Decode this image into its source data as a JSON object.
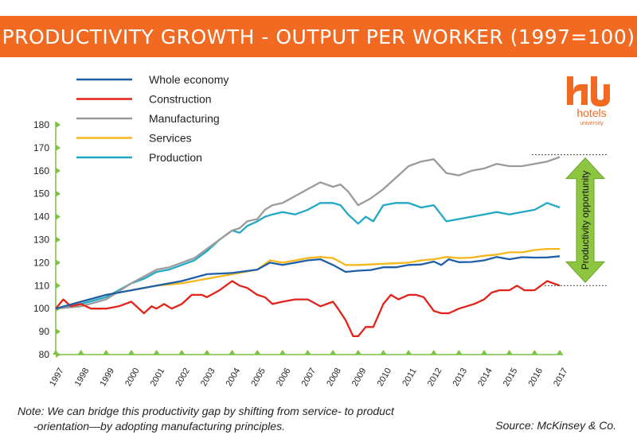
{
  "title": "PRODUCTIVITY GROWTH - OUTPUT PER WORKER (1997=100)",
  "note_line1": "Note: We can bridge this productivity gap by shifting from service- to product",
  "note_line2": "-orientation—by adopting manufacturing principles.",
  "source": "Source: McKinsey & Co.",
  "logo": {
    "text": "hotels",
    "subtext": "university"
  },
  "chart_data": {
    "type": "line",
    "x_ticks": [
      "1997",
      "1998",
      "1999",
      "2000",
      "2001",
      "2002",
      "2003",
      "2004",
      "2005",
      "2006",
      "2007",
      "2008",
      "2009",
      "2010",
      "2011",
      "2012",
      "2013",
      "2014",
      "2015",
      "2016",
      "2017"
    ],
    "y_ticks": [
      80,
      90,
      100,
      110,
      120,
      130,
      140,
      150,
      160,
      170,
      180
    ],
    "xlim": [
      1997,
      2017
    ],
    "ylim": [
      80,
      180
    ],
    "legend_position": "top-left",
    "annotation": "Productivity opportunity",
    "series": [
      {
        "name": "Whole economy",
        "color": "#1f5fa8",
        "x": [
          1997,
          1998,
          1999,
          2000,
          2001,
          2002,
          2003,
          2004,
          2005,
          2005.5,
          2006,
          2007,
          2007.5,
          2008,
          2008.5,
          2009,
          2009.5,
          2010,
          2010.5,
          2011,
          2011.5,
          2012,
          2012.3,
          2012.6,
          2013,
          2013.5,
          2014,
          2014.5,
          2015,
          2015.5,
          2016,
          2016.5,
          2017
        ],
        "y": [
          100,
          103,
          106,
          108,
          110,
          112,
          115,
          115.5,
          117,
          120,
          119,
          121,
          121.5,
          119,
          116,
          116.5,
          116.8,
          118,
          118,
          119,
          119.2,
          120.5,
          119,
          121.5,
          120.2,
          120.3,
          121,
          122.5,
          121.5,
          122.4,
          122.2,
          122.3,
          122.8
        ]
      },
      {
        "name": "Construction",
        "color": "#e2231a",
        "x": [
          1997,
          1997.3,
          1997.6,
          1998,
          1998.4,
          1998.8,
          1999,
          1999.5,
          2000,
          2000.5,
          2000.8,
          2001,
          2001.3,
          2001.6,
          2002,
          2002.4,
          2002.8,
          2003,
          2003.5,
          2004,
          2004.3,
          2004.6,
          2005,
          2005.3,
          2005.6,
          2006,
          2006.5,
          2007,
          2007.5,
          2008,
          2008.2,
          2008.5,
          2008.8,
          2009,
          2009.3,
          2009.6,
          2010,
          2010.3,
          2010.6,
          2011,
          2011.3,
          2011.6,
          2012,
          2012.3,
          2012.6,
          2013,
          2013.3,
          2013.6,
          2014,
          2014.3,
          2014.6,
          2015,
          2015.3,
          2015.6,
          2016,
          2016.5,
          2017
        ],
        "y": [
          100,
          104,
          101,
          102,
          100,
          100,
          100,
          101,
          103,
          98,
          101,
          100,
          102,
          100,
          102,
          106,
          106,
          105,
          108,
          112,
          110,
          109,
          106,
          105,
          102,
          103,
          104,
          104,
          101,
          103,
          100,
          95,
          88,
          88,
          92,
          92,
          102,
          106,
          104,
          106,
          106,
          105,
          99,
          98,
          98,
          100,
          101,
          102,
          104,
          107,
          108,
          108,
          110,
          108,
          108,
          112,
          110
        ]
      },
      {
        "name": "Manufacturing",
        "color": "#9b9b9b",
        "x": [
          1997,
          1998,
          1999,
          2000,
          2000.5,
          2001,
          2001.5,
          2002,
          2002.5,
          2003,
          2003.5,
          2004,
          2004.3,
          2004.6,
          2005,
          2005.3,
          2005.6,
          2006,
          2006.5,
          2007,
          2007.5,
          2008,
          2008.3,
          2008.6,
          2009,
          2009.5,
          2010,
          2010.5,
          2011,
          2011.5,
          2012,
          2012.5,
          2013,
          2013.5,
          2014,
          2014.5,
          2015,
          2015.5,
          2016,
          2016.5,
          2017
        ],
        "y": [
          100,
          101,
          104,
          111,
          114,
          117,
          118,
          120,
          122,
          126,
          130,
          134,
          135,
          138,
          139,
          143,
          145,
          146,
          149,
          152,
          155,
          153,
          154,
          151,
          145,
          148,
          152,
          157,
          162,
          164,
          165,
          159,
          158,
          160,
          161,
          163,
          162,
          162,
          163,
          164,
          166
        ]
      },
      {
        "name": "Services",
        "color": "#f5b81c",
        "x": [
          1997,
          1998,
          1999,
          2000,
          2001,
          2002,
          2003,
          2004,
          2005,
          2005.5,
          2006,
          2007,
          2007.5,
          2008,
          2008.5,
          2009,
          2010,
          2011,
          2011.5,
          2012,
          2012.5,
          2013,
          2013.5,
          2014,
          2014.5,
          2015,
          2015.5,
          2016,
          2016.5,
          2017
        ],
        "y": [
          100,
          103,
          106,
          108,
          110,
          111,
          113,
          115,
          117,
          121,
          120,
          122,
          122.5,
          122,
          119,
          119,
          119.5,
          120,
          121,
          121.5,
          122.5,
          122,
          122.2,
          123,
          123.5,
          124.5,
          124.5,
          125.5,
          126,
          126
        ]
      },
      {
        "name": "Production",
        "color": "#21a8c4",
        "x": [
          1997,
          1998,
          1999,
          2000,
          2000.5,
          2001,
          2001.5,
          2002,
          2002.5,
          2003,
          2003.5,
          2004,
          2004.3,
          2004.6,
          2005,
          2005.3,
          2005.6,
          2006,
          2006.5,
          2007,
          2007.5,
          2008,
          2008.3,
          2008.6,
          2009,
          2009.3,
          2009.6,
          2010,
          2010.5,
          2011,
          2011.5,
          2012,
          2012.5,
          2013,
          2013.5,
          2014,
          2014.5,
          2015,
          2015.5,
          2016,
          2016.5,
          2017
        ],
        "y": [
          100,
          102,
          105,
          111,
          113,
          116,
          117,
          119,
          121,
          125,
          130,
          134,
          133,
          136,
          138,
          140,
          141,
          142,
          141,
          143,
          146,
          146,
          145,
          141,
          137,
          140,
          138,
          145,
          146,
          146,
          144,
          145,
          138,
          139,
          140,
          141,
          142,
          141,
          142,
          143,
          146,
          144
        ]
      }
    ]
  }
}
